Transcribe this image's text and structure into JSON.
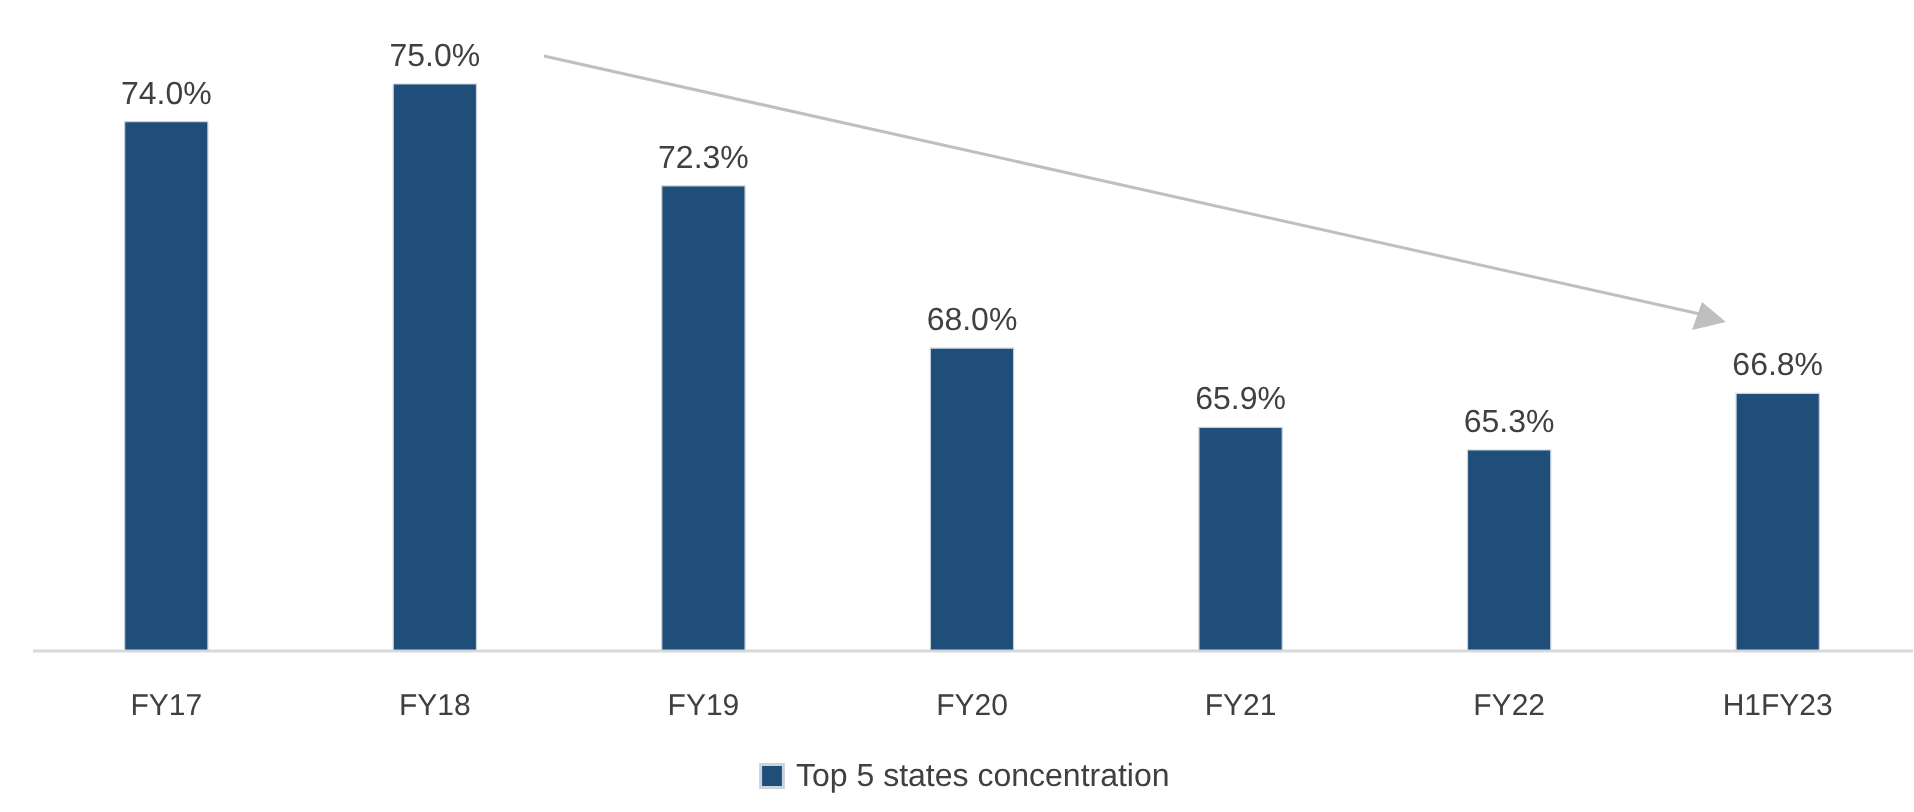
{
  "chart_data": {
    "type": "bar",
    "categories": [
      "FY17",
      "FY18",
      "FY19",
      "FY20",
      "FY21",
      "FY22",
      "H1FY23"
    ],
    "series": [
      {
        "name": "Top 5 states concentration",
        "color": "#1f4e79",
        "values": [
          74.0,
          75.0,
          72.3,
          68.0,
          65.9,
          65.3,
          66.8
        ],
        "value_labels": [
          "74.0%",
          "75.0%",
          "72.3%",
          "68.0%",
          "65.9%",
          "65.3%",
          "66.8%"
        ]
      }
    ],
    "ylim": [
      60,
      75
    ],
    "tick_labels": "x",
    "legend": "bottom"
  }
}
